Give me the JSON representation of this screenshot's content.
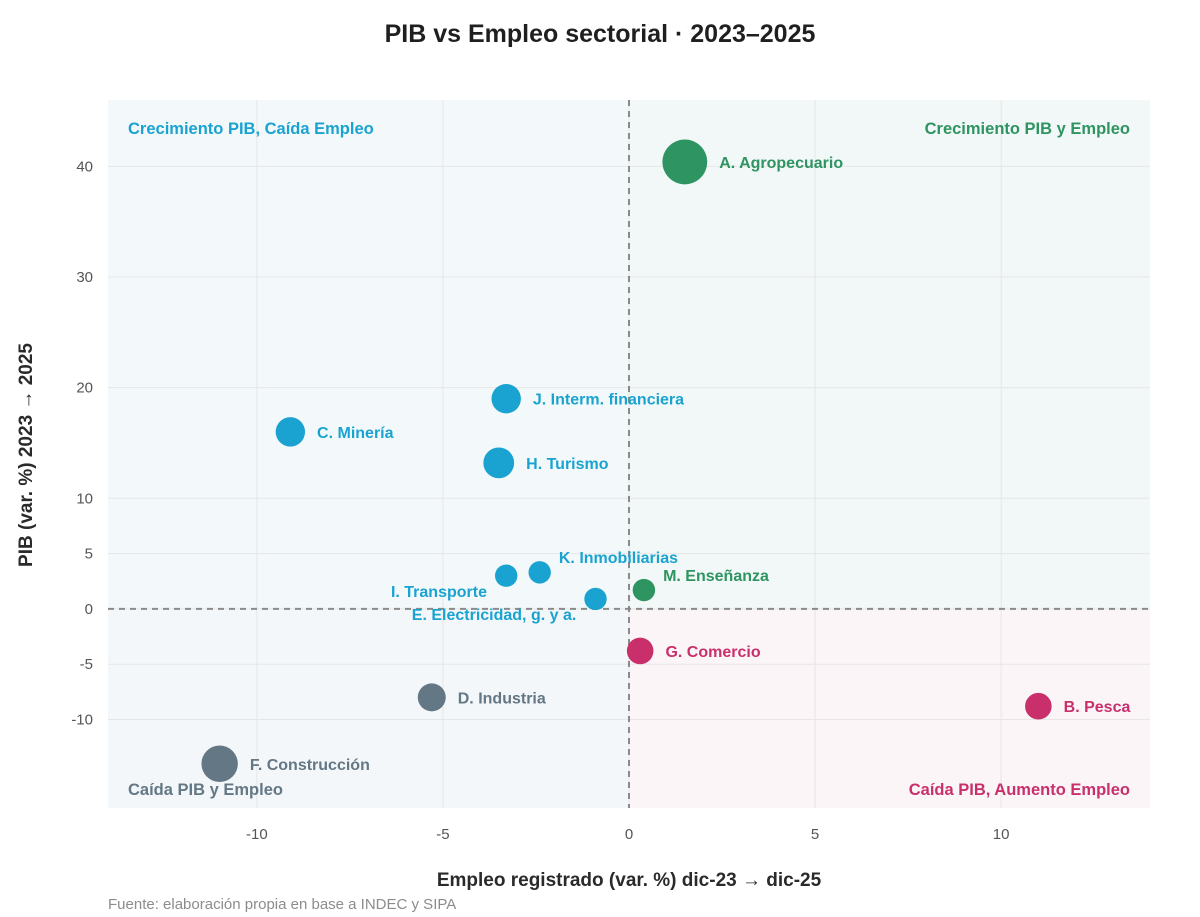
{
  "chart_data": {
    "type": "scatter",
    "title": "PIB vs Empleo sectorial · 2023–2025",
    "xlabel": "Empleo registrado (var. %) dic-23 → dic-25",
    "ylabel": "PIB (var. %) 2023 → 2025",
    "source": "Fuente: elaboración propia en base a INDEC y SIPA",
    "xlim": [
      -14,
      14
    ],
    "ylim": [
      -18,
      46
    ],
    "xticks": [
      -10,
      -5,
      0,
      5,
      10
    ],
    "yticks": [
      -10,
      -5,
      0,
      5,
      10,
      20,
      30,
      40
    ],
    "grid": true,
    "colors": {
      "up_both": "#2e9461",
      "gdp_up_emp_down": "#1aa3d1",
      "down_both": "#637784",
      "gdp_down_emp_up": "#c9306b"
    },
    "quadrants": [
      {
        "label": "Crecimiento PIB, Caída Empleo",
        "position": "top-left",
        "group": "gdp_up_emp_down"
      },
      {
        "label": "Crecimiento PIB y Empleo",
        "position": "top-right",
        "group": "up_both"
      },
      {
        "label": "Caída PIB y Empleo",
        "position": "bottom-left",
        "group": "down_both"
      },
      {
        "label": "Caída PIB, Aumento Empleo",
        "position": "bottom-right",
        "group": "gdp_down_emp_up"
      }
    ],
    "points": [
      {
        "label": "A. Agropecuario",
        "x": 1.5,
        "y": 40.4,
        "size": 3.2,
        "group": "up_both",
        "label_pos": "right"
      },
      {
        "label": "B. Pesca",
        "x": 11.0,
        "y": -8.8,
        "size": 1.9,
        "group": "gdp_down_emp_up",
        "label_pos": "right"
      },
      {
        "label": "C. Minería",
        "x": -9.1,
        "y": 16.0,
        "size": 2.1,
        "group": "gdp_up_emp_down",
        "label_pos": "right"
      },
      {
        "label": "D. Industria",
        "x": -5.3,
        "y": -8.0,
        "size": 2.0,
        "group": "down_both",
        "label_pos": "right"
      },
      {
        "label": "E. Electricidad, g. y a.",
        "x": -0.9,
        "y": 0.9,
        "size": 1.6,
        "group": "gdp_up_emp_down",
        "label_pos": "below-left"
      },
      {
        "label": "F. Construcción",
        "x": -11.0,
        "y": -14.0,
        "size": 2.6,
        "group": "down_both",
        "label_pos": "right"
      },
      {
        "label": "G. Comercio",
        "x": 0.3,
        "y": -3.8,
        "size": 1.9,
        "group": "gdp_down_emp_up",
        "label_pos": "right"
      },
      {
        "label": "H. Turismo",
        "x": -3.5,
        "y": 13.2,
        "size": 2.2,
        "group": "gdp_up_emp_down",
        "label_pos": "right"
      },
      {
        "label": "I. Transporte",
        "x": -3.3,
        "y": 3.0,
        "size": 1.6,
        "group": "gdp_up_emp_down",
        "label_pos": "below-left"
      },
      {
        "label": "J. Interm. financiera",
        "x": -3.3,
        "y": 19.0,
        "size": 2.1,
        "group": "gdp_up_emp_down",
        "label_pos": "right"
      },
      {
        "label": "K. Inmobiliarias",
        "x": -2.4,
        "y": 3.3,
        "size": 1.6,
        "group": "gdp_up_emp_down",
        "label_pos": "above-right"
      },
      {
        "label": "M. Enseñanza",
        "x": 0.4,
        "y": 1.7,
        "size": 1.6,
        "group": "up_both",
        "label_pos": "above-right"
      }
    ]
  }
}
